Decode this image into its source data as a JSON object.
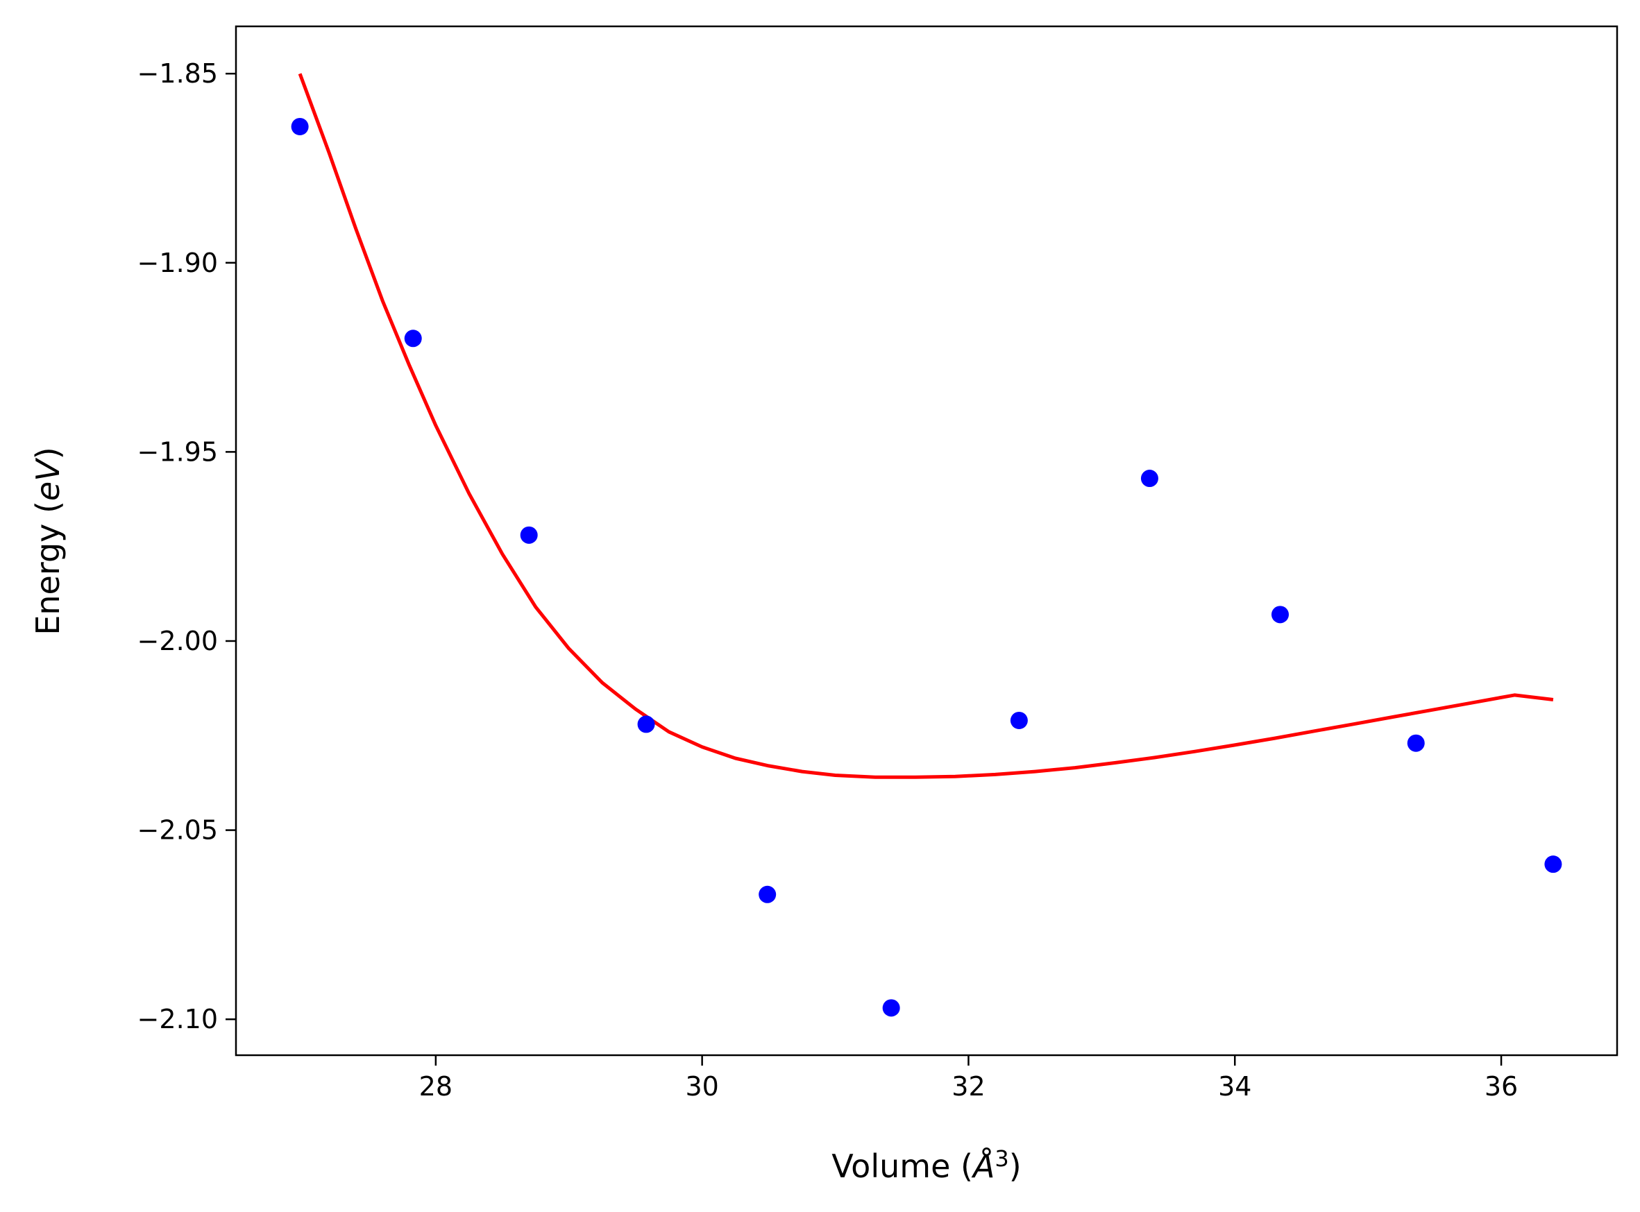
{
  "chart_data": {
    "type": "scatter",
    "title": "",
    "xlabel": {
      "pre": "Volume (",
      "sym": "Å",
      "sup": "3",
      "post": ")"
    },
    "ylabel": {
      "pre": "Energy (",
      "sym": "eV",
      "post": ")"
    },
    "xlim": [
      26.5,
      36.87
    ],
    "ylim": [
      -2.1095,
      -1.8375
    ],
    "grid": false,
    "legend": "none",
    "x_ticks": [
      28,
      30,
      32,
      34,
      36
    ],
    "x_tick_labels": [
      "28",
      "30",
      "32",
      "34",
      "36"
    ],
    "y_ticks": [
      -1.85,
      -1.9,
      -1.95,
      -2.0,
      -2.05,
      -2.1
    ],
    "y_tick_labels": [
      "−1.85",
      "−1.90",
      "−1.95",
      "−2.00",
      "−2.05",
      "−2.10"
    ],
    "series": [
      {
        "type": "scatter",
        "color": "#0000ff",
        "x": [
          26.98,
          27.83,
          28.7,
          29.58,
          30.49,
          31.42,
          32.38,
          33.36,
          34.34,
          35.36,
          36.39
        ],
        "y": [
          -1.864,
          -1.92,
          -1.972,
          -2.022,
          -2.067,
          -2.097,
          -2.021,
          -1.957,
          -1.993,
          -2.027,
          -2.059
        ]
      },
      {
        "type": "line",
        "color": "#ff0000",
        "x": [
          26.98,
          27.2,
          27.4,
          27.6,
          27.8,
          28.0,
          28.25,
          28.5,
          28.75,
          29.0,
          29.25,
          29.5,
          29.75,
          30.0,
          30.25,
          30.5,
          30.75,
          31.0,
          31.3,
          31.6,
          31.9,
          32.2,
          32.5,
          32.8,
          33.1,
          33.4,
          33.7,
          34.0,
          34.3,
          34.6,
          34.9,
          35.2,
          35.5,
          35.8,
          36.1,
          36.39
        ],
        "y": [
          -1.85,
          -1.871,
          -1.891,
          -1.91,
          -1.927,
          -1.943,
          -1.961,
          -1.977,
          -1.991,
          -2.002,
          -2.011,
          -2.018,
          -2.024,
          -2.028,
          -2.031,
          -2.033,
          -2.0345,
          -2.0355,
          -2.036,
          -2.036,
          -2.0358,
          -2.0353,
          -2.0345,
          -2.0335,
          -2.0322,
          -2.0308,
          -2.0292,
          -2.0275,
          -2.0257,
          -2.0238,
          -2.0219,
          -2.02,
          -2.0181,
          -2.0162,
          -2.0143,
          -2.0155
        ]
      }
    ]
  }
}
